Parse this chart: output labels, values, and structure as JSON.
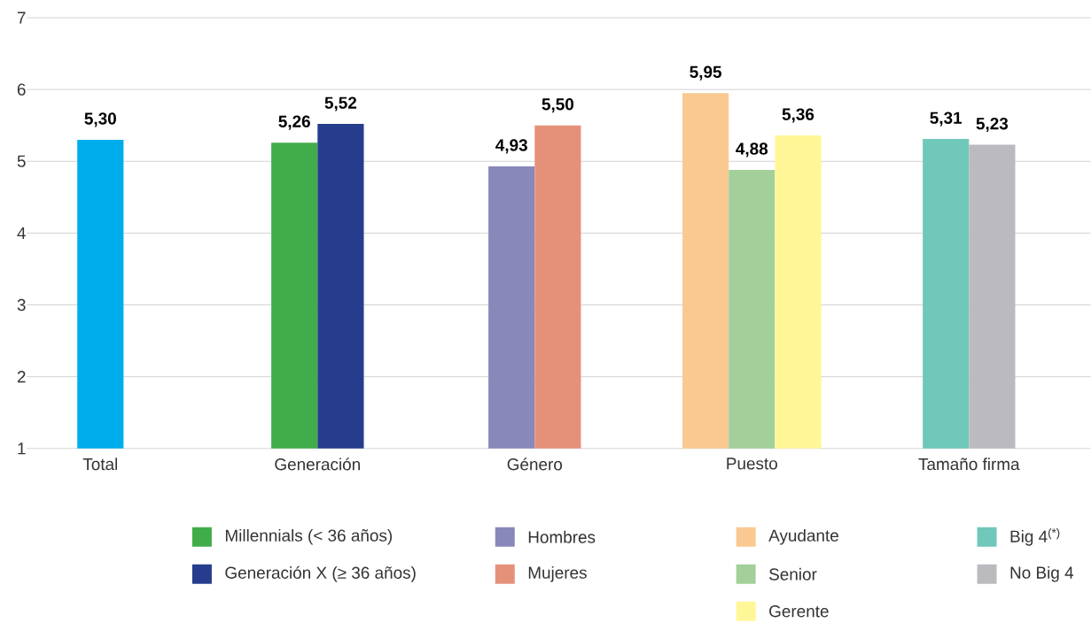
{
  "chart_data": {
    "type": "bar",
    "categories": [
      "Total",
      "Generación",
      "Género",
      "Puesto",
      "Tamaño firma"
    ],
    "series": [
      {
        "color": "#00adec",
        "values": [
          5.3,
          null,
          null,
          null,
          null
        ],
        "value_labels": [
          "5,30",
          null,
          null,
          null,
          null
        ]
      },
      {
        "name": "Millennials (< 36 años)",
        "color": "#41ad4a",
        "values": [
          null,
          5.26,
          null,
          null,
          null
        ],
        "value_labels": [
          null,
          "5,26",
          null,
          null,
          null
        ]
      },
      {
        "name": "Generación X (≥ 36 años)",
        "color": "#253d8c",
        "values": [
          null,
          5.52,
          null,
          null,
          null
        ],
        "value_labels": [
          null,
          "5,52",
          null,
          null,
          null
        ]
      },
      {
        "name": "Hombres",
        "color": "#8888ba",
        "values": [
          null,
          null,
          4.93,
          null,
          null
        ],
        "value_labels": [
          null,
          null,
          "4,93",
          null,
          null
        ]
      },
      {
        "name": "Mujeres",
        "color": "#e5917a",
        "values": [
          null,
          null,
          5.5,
          null,
          null
        ],
        "value_labels": [
          null,
          null,
          "5,50",
          null,
          null
        ]
      },
      {
        "name": "Ayudante",
        "color": "#f9c991",
        "values": [
          null,
          null,
          null,
          5.95,
          null
        ],
        "value_labels": [
          null,
          null,
          null,
          "5,95",
          null
        ]
      },
      {
        "name": "Senior",
        "color": "#a3d09a",
        "values": [
          null,
          null,
          null,
          4.88,
          null
        ],
        "value_labels": [
          null,
          null,
          null,
          "4,88",
          null
        ]
      },
      {
        "name": "Gerente",
        "color": "#fff797",
        "values": [
          null,
          null,
          null,
          5.36,
          null
        ],
        "value_labels": [
          null,
          null,
          null,
          "5,36",
          null
        ]
      },
      {
        "name": "Big 4$^{(*)}$",
        "color": "#6fc8b9",
        "values": [
          null,
          null,
          null,
          null,
          5.31
        ],
        "value_labels": [
          null,
          null,
          null,
          null,
          "5,31"
        ]
      },
      {
        "name": "No Big 4",
        "color": "#bbbbbf",
        "values": [
          null,
          null,
          null,
          null,
          5.23
        ],
        "value_labels": [
          null,
          null,
          null,
          null,
          "5,23"
        ]
      }
    ],
    "ylim": [
      1,
      7
    ],
    "yticks": [
      1,
      2,
      3,
      4,
      5,
      6,
      7
    ],
    "grid": "y",
    "legend": "bottom"
  }
}
